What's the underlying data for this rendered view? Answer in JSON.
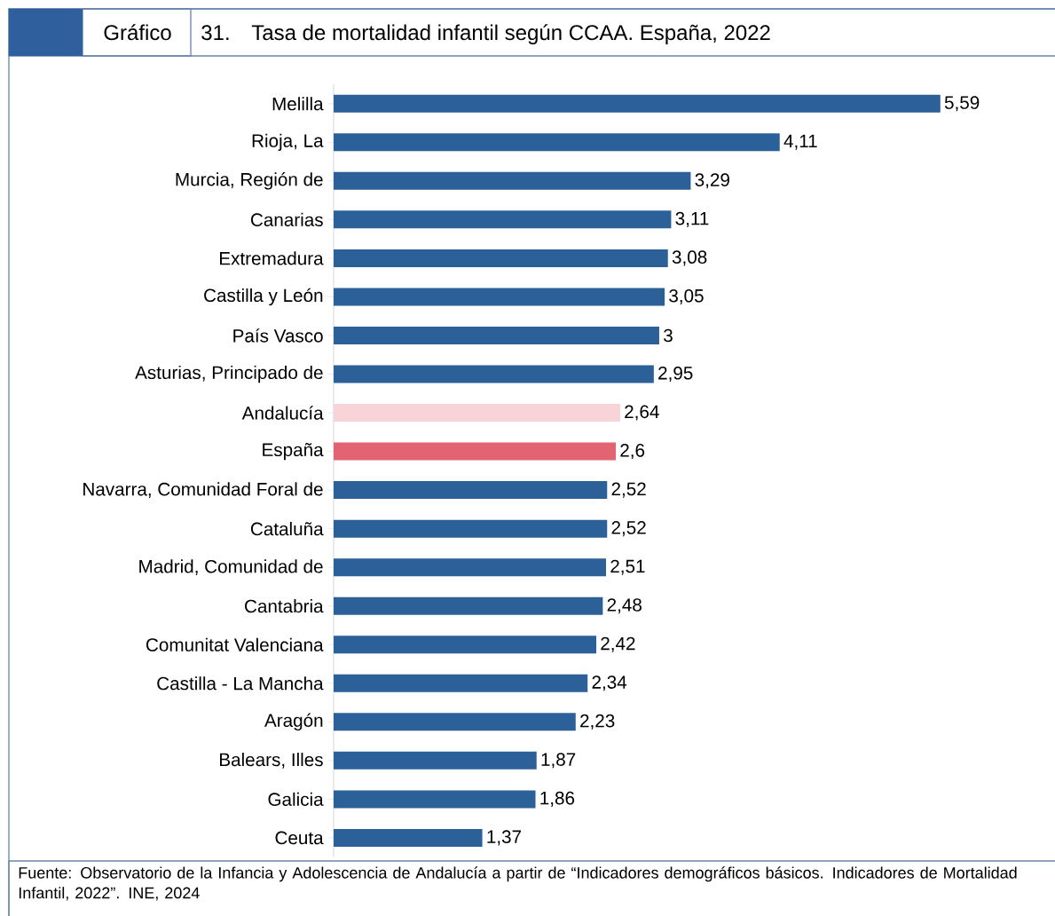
{
  "chart_data": {
    "type": "bar",
    "orientation": "horizontal",
    "title": "Tasa de mortalidad infantil según CCAA. España, 2022",
    "annotations": [
      "Gráfico",
      "31.",
      "Fuente: Observatorio de la Infancia y Adolescencia de Andalucía a partir de “Indicadores demográficos básicos. Indicadores de Mortalidad Infantil, 2022”. INE, 2024"
    ],
    "categories": [
      "Melilla",
      "Rioja, La",
      "Murcia, Región de",
      "Canarias",
      "Extremadura",
      "Castilla y León",
      "País Vasco",
      "Asturias, Principado de",
      "Andalucía",
      "España",
      "Navarra, Comunidad Foral de",
      "Cataluña",
      "Madrid, Comunidad de",
      "Cantabria",
      "Comunitat Valenciana",
      "Castilla - La Mancha",
      "Aragón",
      "Balears, Illes",
      "Galicia",
      "Ceuta"
    ],
    "values": [
      5.59,
      4.11,
      3.29,
      3.11,
      3.08,
      3.05,
      3,
      2.95,
      2.64,
      2.6,
      2.52,
      2.52,
      2.51,
      2.48,
      2.42,
      2.34,
      2.23,
      1.87,
      1.86,
      1.37
    ],
    "value_labels": [
      "5,59",
      "4,11",
      "3,29",
      "3,11",
      "3,08",
      "3,05",
      "3",
      "2,95",
      "2,64",
      "2,6",
      "2,52",
      "2,52",
      "2,51",
      "2,48",
      "2,42",
      "2,34",
      "2,23",
      "1,87",
      "1,86",
      "1,37"
    ],
    "colors": [
      "#2b6099",
      "#2b6099",
      "#2b6099",
      "#2b6099",
      "#2b6099",
      "#2b6099",
      "#2b6099",
      "#2b6099",
      "#f8d3d8",
      "#e26372",
      "#2b6099",
      "#2b6099",
      "#2b6099",
      "#2b6099",
      "#2b6099",
      "#2b6099",
      "#2b6099",
      "#2b6099",
      "#2b6099",
      "#2b6099"
    ]
  }
}
